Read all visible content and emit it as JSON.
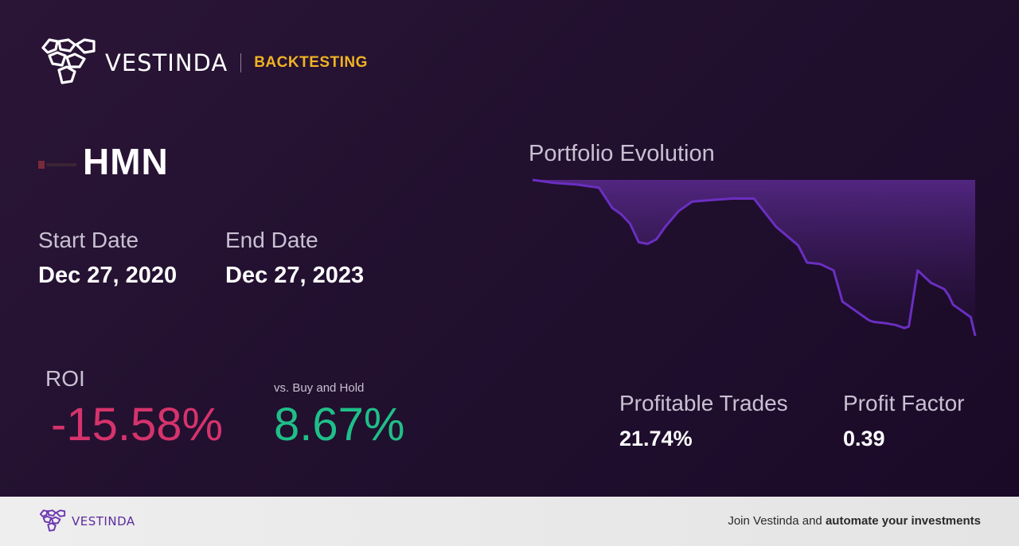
{
  "brand": {
    "name": "VESTINDA",
    "tag": "BACKTESTING"
  },
  "ticker": "HMN",
  "dates": {
    "start_label": "Start Date",
    "start_value": "Dec 27, 2020",
    "end_label": "End Date",
    "end_value": "Dec 27, 2023"
  },
  "roi": {
    "label": "ROI",
    "value": "-15.58%",
    "vs_label": "vs. Buy and Hold",
    "vs_value": "8.67%"
  },
  "stats": {
    "profitable_label": "Profitable Trades",
    "profitable_value": "21.74%",
    "factor_label": "Profit Factor",
    "factor_value": "0.39"
  },
  "chart_data": {
    "type": "area",
    "title": "Portfolio Evolution",
    "xlabel": "",
    "ylabel": "",
    "grid": false,
    "legend": "none",
    "x": [
      0,
      5,
      10,
      15,
      18,
      20,
      22,
      24,
      26,
      28,
      30,
      33,
      36,
      40,
      45,
      50,
      55,
      60,
      62,
      65,
      68,
      70,
      72,
      75,
      76,
      77,
      80,
      82,
      83,
      84,
      85,
      87,
      90,
      93,
      94,
      95,
      96,
      97,
      98,
      99,
      100
    ],
    "series": [
      {
        "values": [
          100,
          98,
          97,
          95,
          82,
          78,
          72,
          60,
          59,
          62,
          70,
          80,
          86,
          87,
          88,
          88,
          70,
          58,
          47,
          46,
          42,
          22,
          18,
          12,
          10,
          9,
          8,
          7,
          6,
          5,
          6,
          42,
          34,
          30,
          26,
          20,
          18,
          16,
          14,
          12,
          0
        ]
      }
    ],
    "colors": {
      "line": "#6a2fc0",
      "fill": "#5a2a8f"
    }
  },
  "footer": {
    "brand": "VESTINDA",
    "cta_prefix": "Join Vestinda and ",
    "cta_bold": "automate your investments"
  }
}
